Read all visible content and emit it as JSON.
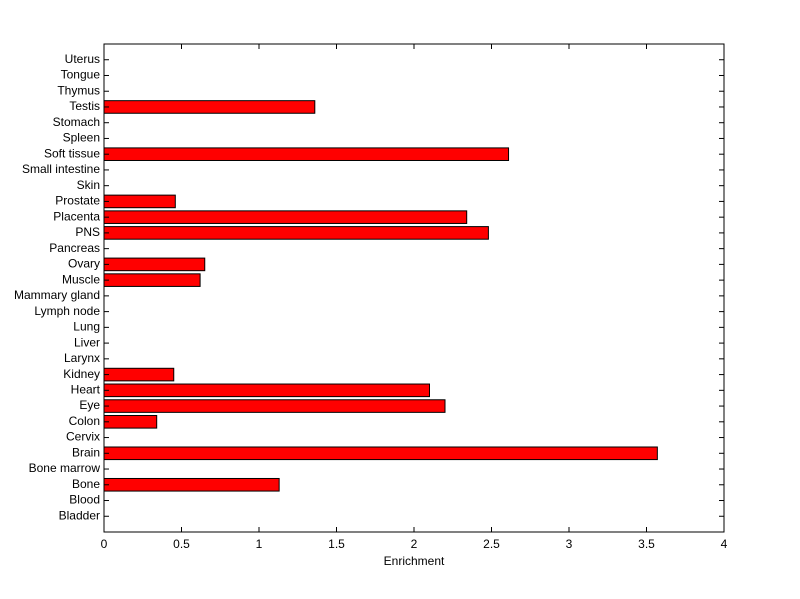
{
  "chart_data": {
    "type": "barh",
    "x_label": "Enrichment",
    "categories": [
      "Bladder",
      "Blood",
      "Bone",
      "Bone marrow",
      "Brain",
      "Cervix",
      "Colon",
      "Eye",
      "Heart",
      "Kidney",
      "Larynx",
      "Liver",
      "Lung",
      "Lymph node",
      "Mammary gland",
      "Muscle",
      "Ovary",
      "Pancreas",
      "PNS",
      "Placenta",
      "Prostate",
      "Skin",
      "Small intestine",
      "Soft tissue",
      "Spleen",
      "Stomach",
      "Testis",
      "Thymus",
      "Tongue",
      "Uterus"
    ],
    "values": [
      0,
      0,
      1.13,
      0,
      3.57,
      0,
      0.34,
      2.2,
      2.1,
      0.45,
      0,
      0,
      0,
      0,
      0,
      0.62,
      0.65,
      0,
      2.48,
      2.34,
      0.46,
      0,
      0,
      2.61,
      0,
      0,
      1.36,
      0,
      0,
      0
    ],
    "color": "#ff0000",
    "xlim": [
      0,
      4
    ],
    "xticks": [
      0,
      0.5,
      1,
      1.5,
      2,
      2.5,
      3,
      3.5,
      4
    ]
  }
}
